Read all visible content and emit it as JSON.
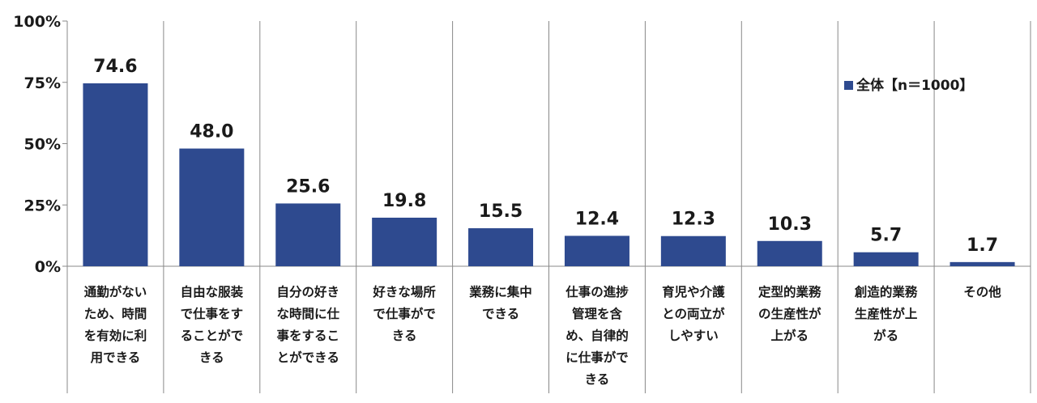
{
  "chart_data": {
    "type": "bar",
    "categories": [
      [
        "通勤がない",
        "ため、時間",
        "を有効に利",
        "用できる"
      ],
      [
        "自由な服装",
        "で仕事をす",
        "ることがで",
        "きる"
      ],
      [
        "自分の好き",
        "な時間に仕",
        "事をするこ",
        "とができる"
      ],
      [
        "好きな場所",
        "で仕事がで",
        "きる"
      ],
      [
        "業務に集中",
        "できる"
      ],
      [
        "仕事の進捗",
        "管理を含",
        "め、自律的",
        "に仕事がで",
        "きる"
      ],
      [
        "育児や介護",
        "との両立が",
        "しやすい"
      ],
      [
        "定型的業務",
        "の生産性が",
        "上がる"
      ],
      [
        "創造的業務",
        "生産性が上",
        "がる"
      ],
      [
        "その他"
      ]
    ],
    "series": [
      {
        "name": "全体【n＝1000】",
        "values": [
          74.6,
          48.0,
          25.6,
          19.8,
          15.5,
          12.4,
          12.3,
          10.3,
          5.7,
          1.7
        ],
        "value_labels": [
          "74.6",
          "48.0",
          "25.6",
          "19.8",
          "15.5",
          "12.4",
          "12.3",
          "10.3",
          "5.7",
          "1.7"
        ],
        "color": "#2e4a8f"
      }
    ],
    "yticks": [
      "0%",
      "25%",
      "50%",
      "75%",
      "100%"
    ],
    "ylim": [
      0,
      100
    ],
    "grid": false,
    "legend_position": "right"
  }
}
